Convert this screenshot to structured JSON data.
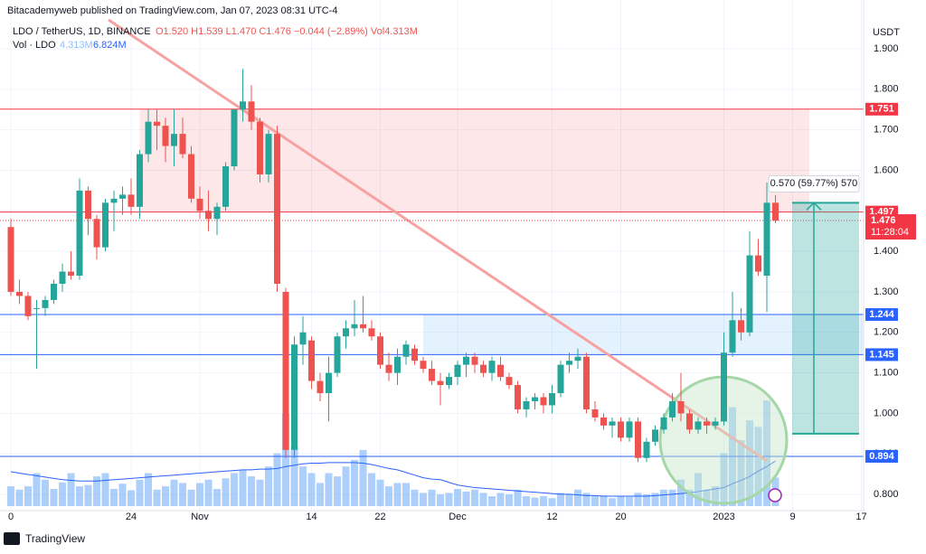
{
  "header": {
    "published": "Bitacademyweb published on TradingView.com, Jan 07, 2023 08:31 UTC-4",
    "footer": "TradingView"
  },
  "chart_data": {
    "type": "candlestick",
    "symbol": "LDO / TetherUS, 1D, BINANCE",
    "ohlc_text": "O1.520 H1.539 L1.470 C1.476 −0.044 (−2.89%) Vol4.313M",
    "volume_legend": {
      "name": "Vol · LDO",
      "last": "4.313M",
      "ma": "6.824M"
    },
    "currency": "USDT",
    "up_color": "#26a69a",
    "down_color": "#ef5350",
    "volume_color": "#90bff9",
    "ma_color": "#2962ff",
    "categories": [
      "0",
      null,
      null,
      null,
      null,
      null,
      null,
      null,
      null,
      null,
      null,
      null,
      null,
      null,
      "24",
      null,
      null,
      null,
      null,
      null,
      null,
      null,
      "Nov",
      null,
      null,
      null,
      null,
      null,
      null,
      null,
      null,
      null,
      null,
      null,
      null,
      "14",
      null,
      null,
      null,
      null,
      null,
      null,
      null,
      "22",
      null,
      null,
      null,
      null,
      null,
      null,
      null,
      null,
      "Dec",
      null,
      null,
      null,
      null,
      null,
      null,
      null,
      null,
      null,
      null,
      "12",
      null,
      null,
      null,
      null,
      null,
      null,
      null,
      "20",
      null,
      null,
      null,
      null,
      null,
      null,
      null,
      null,
      null,
      null,
      null,
      "2023",
      null,
      null,
      null,
      null,
      null,
      null,
      null,
      "9",
      null,
      null,
      null,
      null,
      null,
      null,
      null,
      "17"
    ],
    "open": [
      1.46,
      1.3,
      1.29,
      1.26,
      1.26,
      1.28,
      1.32,
      1.35,
      1.34,
      1.55,
      1.48,
      1.41,
      1.52,
      1.53,
      1.54,
      1.51,
      1.64,
      1.72,
      1.71,
      1.66,
      1.69,
      1.64,
      1.53,
      1.5,
      1.48,
      1.51,
      1.61,
      1.75,
      1.77,
      1.72,
      1.59,
      1.69,
      1.3,
      0.91,
      1.17,
      1.18,
      1.08,
      1.05,
      1.1,
      1.19,
      1.21,
      1.22,
      1.21,
      1.19,
      1.12,
      1.1,
      1.14,
      1.16,
      1.13,
      1.11,
      1.08,
      1.07,
      1.09,
      1.12,
      1.14,
      1.12,
      1.1,
      1.12,
      1.09,
      1.07,
      1.01,
      1.03,
      1.04,
      1.02,
      1.05,
      1.12,
      1.13,
      1.14,
      1.01,
      0.99,
      0.97,
      0.98,
      0.94,
      0.98,
      0.89,
      0.93,
      0.96,
      0.99,
      1.03,
      1.0,
      0.96,
      0.98,
      0.97,
      0.98,
      1.15,
      1.23,
      1.2,
      1.39,
      1.34,
      1.52,
      null,
      null,
      null,
      null,
      null,
      null,
      null,
      null,
      null,
      null
    ],
    "high": [
      1.48,
      1.33,
      1.3,
      1.28,
      1.29,
      1.33,
      1.37,
      1.4,
      1.58,
      1.56,
      1.49,
      1.53,
      1.55,
      1.56,
      1.58,
      1.65,
      1.75,
      1.75,
      1.73,
      1.75,
      1.73,
      1.66,
      1.56,
      1.55,
      1.52,
      1.62,
      1.75,
      1.85,
      1.81,
      1.73,
      1.7,
      1.71,
      1.31,
      1.19,
      1.24,
      1.19,
      1.1,
      1.14,
      1.2,
      1.23,
      1.28,
      1.29,
      1.23,
      1.2,
      1.15,
      1.16,
      1.18,
      1.17,
      1.14,
      1.13,
      1.1,
      1.1,
      1.13,
      1.15,
      1.15,
      1.13,
      1.14,
      1.14,
      1.1,
      1.08,
      1.04,
      1.05,
      1.05,
      1.07,
      1.13,
      1.15,
      1.16,
      1.15,
      1.03,
      1.0,
      0.99,
      0.99,
      0.99,
      0.99,
      0.94,
      0.97,
      1.0,
      1.05,
      1.1,
      1.01,
      0.99,
      0.99,
      0.99,
      1.2,
      1.3,
      1.26,
      1.45,
      1.43,
      1.57,
      1.539,
      null,
      null,
      null,
      null,
      null,
      null,
      null,
      null,
      null,
      null
    ],
    "low": [
      1.29,
      1.27,
      1.23,
      1.11,
      1.24,
      1.27,
      1.3,
      1.33,
      1.33,
      1.44,
      1.38,
      1.4,
      1.45,
      1.49,
      1.49,
      1.48,
      1.62,
      1.65,
      1.62,
      1.61,
      1.63,
      1.52,
      1.48,
      1.45,
      1.44,
      1.5,
      1.6,
      1.72,
      1.7,
      1.57,
      1.57,
      1.3,
      0.89,
      0.89,
      1.12,
      1.06,
      1.03,
      0.98,
      1.09,
      1.16,
      1.19,
      1.2,
      1.18,
      1.11,
      1.08,
      1.07,
      1.12,
      1.12,
      1.1,
      1.07,
      1.02,
      1.06,
      1.07,
      1.09,
      1.1,
      1.09,
      1.08,
      1.08,
      1.06,
      1.0,
      0.99,
      1.01,
      1.0,
      1.0,
      1.04,
      1.1,
      1.11,
      1.0,
      0.98,
      0.96,
      0.94,
      0.93,
      0.93,
      0.88,
      0.88,
      0.92,
      0.95,
      0.98,
      0.98,
      0.95,
      0.95,
      0.95,
      0.96,
      0.97,
      1.14,
      1.18,
      1.19,
      1.34,
      1.25,
      1.47,
      null,
      null,
      null,
      null,
      null,
      null,
      null,
      null,
      null,
      null
    ],
    "close": [
      1.3,
      1.29,
      1.24,
      1.26,
      1.28,
      1.32,
      1.35,
      1.34,
      1.55,
      1.48,
      1.41,
      1.52,
      1.53,
      1.54,
      1.51,
      1.64,
      1.72,
      1.71,
      1.66,
      1.69,
      1.64,
      1.53,
      1.5,
      1.48,
      1.51,
      1.61,
      1.75,
      1.77,
      1.72,
      1.59,
      1.69,
      1.32,
      0.91,
      1.17,
      1.2,
      1.08,
      1.05,
      1.1,
      1.19,
      1.21,
      1.22,
      1.21,
      1.19,
      1.12,
      1.1,
      1.14,
      1.17,
      1.13,
      1.11,
      1.08,
      1.07,
      1.09,
      1.12,
      1.14,
      1.12,
      1.1,
      1.13,
      1.09,
      1.07,
      1.01,
      1.03,
      1.04,
      1.02,
      1.05,
      1.12,
      1.13,
      1.14,
      1.01,
      0.99,
      0.97,
      0.98,
      0.94,
      0.98,
      0.89,
      0.93,
      0.96,
      0.99,
      1.03,
      1.0,
      0.96,
      0.98,
      0.97,
      0.98,
      1.15,
      1.23,
      1.2,
      1.39,
      1.35,
      1.52,
      1.476,
      null,
      null,
      null,
      null,
      null,
      null,
      null,
      null,
      null,
      null
    ],
    "volume": [
      3,
      2.5,
      3,
      5,
      4,
      2.6,
      3.6,
      5,
      3,
      3.2,
      4.5,
      5,
      2.6,
      3.4,
      2.4,
      4,
      5,
      2.5,
      3,
      4,
      3.5,
      2.5,
      3.5,
      4,
      2.6,
      4.2,
      5,
      5.5,
      4.5,
      4,
      6,
      8,
      14,
      9,
      6,
      5,
      3.5,
      5,
      4.5,
      6,
      7,
      8.5,
      5,
      4,
      3,
      3.5,
      3.5,
      2.5,
      2,
      2.5,
      1.8,
      2,
      2.6,
      2.2,
      2.5,
      2,
      1.5,
      2,
      1.8,
      2.5,
      1.5,
      1.3,
      1.5,
      1.2,
      2,
      1.8,
      2.5,
      2,
      1.5,
      1.6,
      1.2,
      1.5,
      1.4,
      2,
      1.8,
      2,
      2.5,
      2.5,
      4,
      2.5,
      5,
      2.5,
      3,
      8,
      15,
      10,
      13,
      12,
      16,
      4.313,
      null,
      null,
      null,
      null,
      null,
      null,
      null,
      null,
      null,
      null
    ],
    "volume_ma": [
      5.2,
      5.0,
      4.8,
      4.6,
      4.4,
      4.2,
      4.0,
      3.9,
      3.8,
      3.8,
      3.8,
      3.9,
      4.0,
      4.1,
      4.2,
      4.3,
      4.4,
      4.5,
      4.6,
      4.7,
      4.8,
      4.9,
      5.0,
      5.1,
      5.2,
      5.3,
      5.4,
      5.5,
      5.5,
      5.6,
      5.6,
      5.7,
      6.0,
      6.2,
      6.4,
      6.5,
      6.5,
      6.6,
      6.6,
      6.6,
      6.6,
      6.5,
      6.3,
      6.0,
      5.7,
      5.5,
      5.1,
      4.7,
      4.3,
      4.1,
      4.0,
      3.6,
      3.2,
      3.0,
      2.8,
      2.7,
      2.6,
      2.5,
      2.4,
      2.3,
      2.2,
      2.1,
      2.0,
      1.9,
      1.8,
      1.8,
      1.7,
      1.6,
      1.6,
      1.5,
      1.5,
      1.5,
      1.5,
      1.5,
      1.5,
      1.6,
      1.7,
      1.8,
      1.9,
      2.0,
      2.2,
      2.4,
      2.6,
      2.8,
      3.4,
      3.9,
      4.5,
      5.3,
      6.0,
      6.824,
      null,
      null,
      null,
      null,
      null,
      null,
      null,
      null,
      null,
      null
    ],
    "ylim": [
      0.76,
      1.96
    ],
    "yticks": [
      {
        "value": 1.9,
        "label": "1.900"
      },
      {
        "value": 1.8,
        "label": "1.800"
      },
      {
        "value": 1.7,
        "label": "1.700"
      },
      {
        "value": 1.6,
        "label": "1.600"
      },
      {
        "value": 1.5,
        "label": "1.500"
      },
      {
        "value": 1.4,
        "label": "1.400"
      },
      {
        "value": 1.3,
        "label": "1.300"
      },
      {
        "value": 1.2,
        "label": "1.200"
      },
      {
        "value": 1.1,
        "label": "1.100"
      },
      {
        "value": 1.0,
        "label": "1.000"
      },
      {
        "value": 0.9,
        "label": "0.900"
      },
      {
        "value": 0.8,
        "label": "0.800"
      }
    ],
    "levels": [
      {
        "value": 1.751,
        "color": "#f23645"
      },
      {
        "value": 1.497,
        "color": "#f23645"
      },
      {
        "value": 1.244,
        "color": "#2962ff"
      },
      {
        "value": 1.145,
        "color": "#2962ff"
      },
      {
        "value": 0.894,
        "color": "#2962ff"
      }
    ],
    "last_price": {
      "value": 1.476,
      "countdown": "11:28:04",
      "color": "#f23645"
    },
    "measure": {
      "from": 0.95,
      "to": 1.52,
      "label": "0.570 (59.77%) 570"
    }
  }
}
